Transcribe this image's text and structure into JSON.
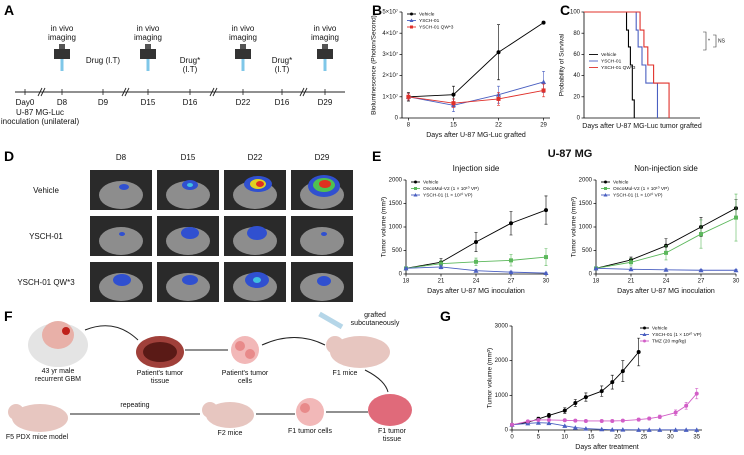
{
  "figure": {
    "panel_labels": [
      "A",
      "B",
      "C",
      "D",
      "E",
      "F",
      "G"
    ],
    "e_title": "U-87 MG"
  },
  "timeline": {
    "imaging": [
      "in vivo imaging",
      "in vivo imaging",
      "in vivo imaging",
      "in vivo imaging"
    ],
    "drugs": [
      "Drug (I.T)",
      "Drug* (I.T)",
      "Drug* (I.T)"
    ],
    "days": [
      "Day0",
      "D8",
      "D9",
      "D15",
      "D16",
      "D22",
      "D16",
      "D29"
    ],
    "note": "U-87 MG-Luc inoculation (unilateral)"
  },
  "images": {
    "columns": [
      "D8",
      "D15",
      "D22",
      "D29"
    ],
    "rows": [
      "Vehicle",
      "YSCH-01",
      "YSCH-01 QW*3"
    ]
  },
  "workflow": {
    "patient": "43 yr male recurrent GBM",
    "tissue": "Patient's tumor tissue",
    "cells": "Patient's tumor cells",
    "graft": "grafted subcutaneously",
    "f1_mice": "F1 mice",
    "f1_tissue": "F1 tumor tissue",
    "f1_cells": "F1 tumor cells",
    "f2_mice": "F2 mice",
    "repeat": "repeating",
    "f5": "F5 PDX mice model"
  },
  "chart_data": [
    {
      "type": "line",
      "xlabel": "Days after U-87 MG-Luc grafted",
      "ylabel": "Bioluminescence (Photon/Second)",
      "x": [
        8,
        15,
        22,
        29
      ],
      "xlim": [
        7,
        30
      ],
      "xticks": [
        8,
        15,
        22,
        29
      ],
      "ylim": [
        0,
        50000000
      ],
      "yticks": [
        0,
        {
          "value": 10000000,
          "label": "1×10⁷"
        },
        {
          "value": 20000000,
          "label": "2×10⁷"
        },
        {
          "value": 30000000,
          "label": "3×10⁷"
        },
        {
          "value": 40000000,
          "label": "4×10⁷"
        },
        {
          "value": 50000000,
          "label": "5×10⁷"
        }
      ],
      "legend": "upper left",
      "series": [
        {
          "name": "Vehicle",
          "color": "#000000",
          "marker": "circle",
          "values": [
            10000000,
            11000000,
            31000000,
            45000000
          ],
          "errors": [
            2000000,
            4000000,
            13000000,
            0
          ]
        },
        {
          "name": "YSCH-01",
          "color": "#4a5fc1",
          "marker": "triangle",
          "values": [
            10000000,
            6000000,
            11000000,
            17000000
          ],
          "errors": [
            1500000,
            3000000,
            4000000,
            5000000
          ]
        },
        {
          "name": "YSCH-01 QW*3",
          "color": "#e0302a",
          "marker": "square",
          "values": [
            10000000,
            7000000,
            9000000,
            13000000
          ],
          "errors": [
            1500000,
            2000000,
            3000000,
            3000000
          ]
        }
      ]
    },
    {
      "type": "step",
      "xlabel": "Days after U-87 MG-Luc tumor grafted",
      "ylabel": "Probability of Survival",
      "xlim": [
        0,
        60
      ],
      "ylim": [
        0,
        100
      ],
      "yticks": [
        0,
        20,
        40,
        60,
        80,
        100
      ],
      "legend": "center left",
      "annotations": [
        "*",
        "NS"
      ],
      "series": [
        {
          "name": "Vehicle",
          "color": "#000000",
          "x": [
            0,
            22,
            23,
            24,
            25,
            26
          ],
          "values": [
            100,
            83,
            67,
            50,
            17,
            0
          ]
        },
        {
          "name": "YSCH-01",
          "color": "#4a5fc1",
          "x": [
            0,
            27,
            28,
            30,
            32,
            38
          ],
          "values": [
            100,
            83,
            67,
            50,
            33,
            0
          ]
        },
        {
          "name": "YSCH-01 QW*3",
          "color": "#e0302a",
          "x": [
            0,
            29,
            31,
            33,
            36,
            44
          ],
          "values": [
            100,
            83,
            67,
            50,
            33,
            0
          ]
        }
      ]
    },
    {
      "type": "line",
      "title": "Injection side",
      "xlabel": "Days after U-87 MG inoculation",
      "ylabel": "Tumor volume (mm³)",
      "x": [
        18,
        21,
        24,
        27,
        30
      ],
      "xlim": [
        18,
        30
      ],
      "xticks": [
        18,
        21,
        24,
        27,
        30
      ],
      "ylim": [
        0,
        2000
      ],
      "yticks": [
        0,
        500,
        1000,
        1500,
        2000
      ],
      "legend": "upper left",
      "series": [
        {
          "name": "Vehicle",
          "color": "#000000",
          "marker": "circle",
          "values": [
            120,
            250,
            680,
            1080,
            1360
          ],
          "errors": [
            20,
            80,
            200,
            250,
            300
          ]
        },
        {
          "name": "OncoMul-V2 (1 × 10¹⁰ VP)",
          "color": "#5cb85c",
          "marker": "square",
          "values": [
            120,
            220,
            260,
            290,
            360
          ],
          "errors": [
            20,
            60,
            80,
            120,
            180
          ]
        },
        {
          "name": "YSCH-01 (1 × 10¹⁰ VP)",
          "color": "#4a5fc1",
          "marker": "triangle",
          "values": [
            120,
            150,
            70,
            40,
            20
          ],
          "errors": [
            20,
            40,
            30,
            20,
            10
          ]
        }
      ]
    },
    {
      "type": "line",
      "title": "Non-injection side",
      "xlabel": "Days after U-87 MG inoculation",
      "ylabel": "Tumor volume (mm³)",
      "x": [
        18,
        21,
        24,
        27,
        30
      ],
      "xlim": [
        18,
        30
      ],
      "xticks": [
        18,
        21,
        24,
        27,
        30
      ],
      "ylim": [
        0,
        2000
      ],
      "yticks": [
        0,
        500,
        1000,
        1500,
        2000
      ],
      "legend": "upper left",
      "series": [
        {
          "name": "Vehicle",
          "color": "#000000",
          "marker": "circle",
          "values": [
            120,
            300,
            600,
            1000,
            1400
          ],
          "errors": [
            20,
            60,
            150,
            200,
            180
          ]
        },
        {
          "name": "OncoMul-V2 (1 × 10¹⁰ VP)",
          "color": "#5cb85c",
          "marker": "square",
          "values": [
            120,
            250,
            450,
            850,
            1200
          ],
          "errors": [
            20,
            80,
            150,
            300,
            500
          ]
        },
        {
          "name": "YSCH-01 (1 × 10¹⁰ VP)",
          "color": "#4a5fc1",
          "marker": "triangle",
          "values": [
            120,
            100,
            90,
            80,
            80
          ],
          "errors": [
            10,
            30,
            20,
            20,
            20
          ]
        }
      ]
    },
    {
      "type": "line",
      "xlabel": "Days after treatment",
      "ylabel": "Tumor volume (mm³)",
      "xlim": [
        0,
        36
      ],
      "xticks": [
        0,
        5,
        10,
        15,
        20,
        25,
        30,
        35
      ],
      "ylim": [
        0,
        3000
      ],
      "yticks": [
        0,
        1000,
        2000,
        3000
      ],
      "legend": "upper right",
      "series": [
        {
          "name": "Vehicle",
          "color": "#000000",
          "marker": "circle",
          "x": [
            0,
            3,
            5,
            7,
            10,
            12,
            14,
            17,
            19,
            21,
            24
          ],
          "values": [
            150,
            220,
            320,
            420,
            560,
            780,
            950,
            1120,
            1380,
            1700,
            2250
          ],
          "errors": [
            20,
            30,
            50,
            60,
            80,
            100,
            120,
            150,
            200,
            300,
            400
          ]
        },
        {
          "name": "YSCH-01 (1 × 10¹⁰ VP)",
          "color": "#4a5fc1",
          "marker": "triangle",
          "x": [
            0,
            3,
            5,
            7,
            10,
            12,
            14,
            17,
            19,
            21,
            24,
            26,
            28,
            31,
            33,
            35
          ],
          "values": [
            150,
            190,
            210,
            200,
            120,
            70,
            40,
            20,
            10,
            10,
            5,
            5,
            5,
            5,
            5,
            5
          ]
        },
        {
          "name": "TMZ (20 mg/kg)",
          "color": "#d25ec7",
          "marker": "circle",
          "x": [
            0,
            3,
            5,
            7,
            10,
            12,
            14,
            17,
            19,
            21,
            24,
            26,
            28,
            31,
            33,
            35
          ],
          "values": [
            150,
            250,
            290,
            290,
            280,
            270,
            260,
            260,
            260,
            270,
            300,
            330,
            380,
            500,
            700,
            1050
          ],
          "errors": [
            20,
            30,
            30,
            30,
            30,
            30,
            30,
            30,
            30,
            30,
            40,
            40,
            50,
            80,
            100,
            150
          ]
        }
      ]
    }
  ]
}
